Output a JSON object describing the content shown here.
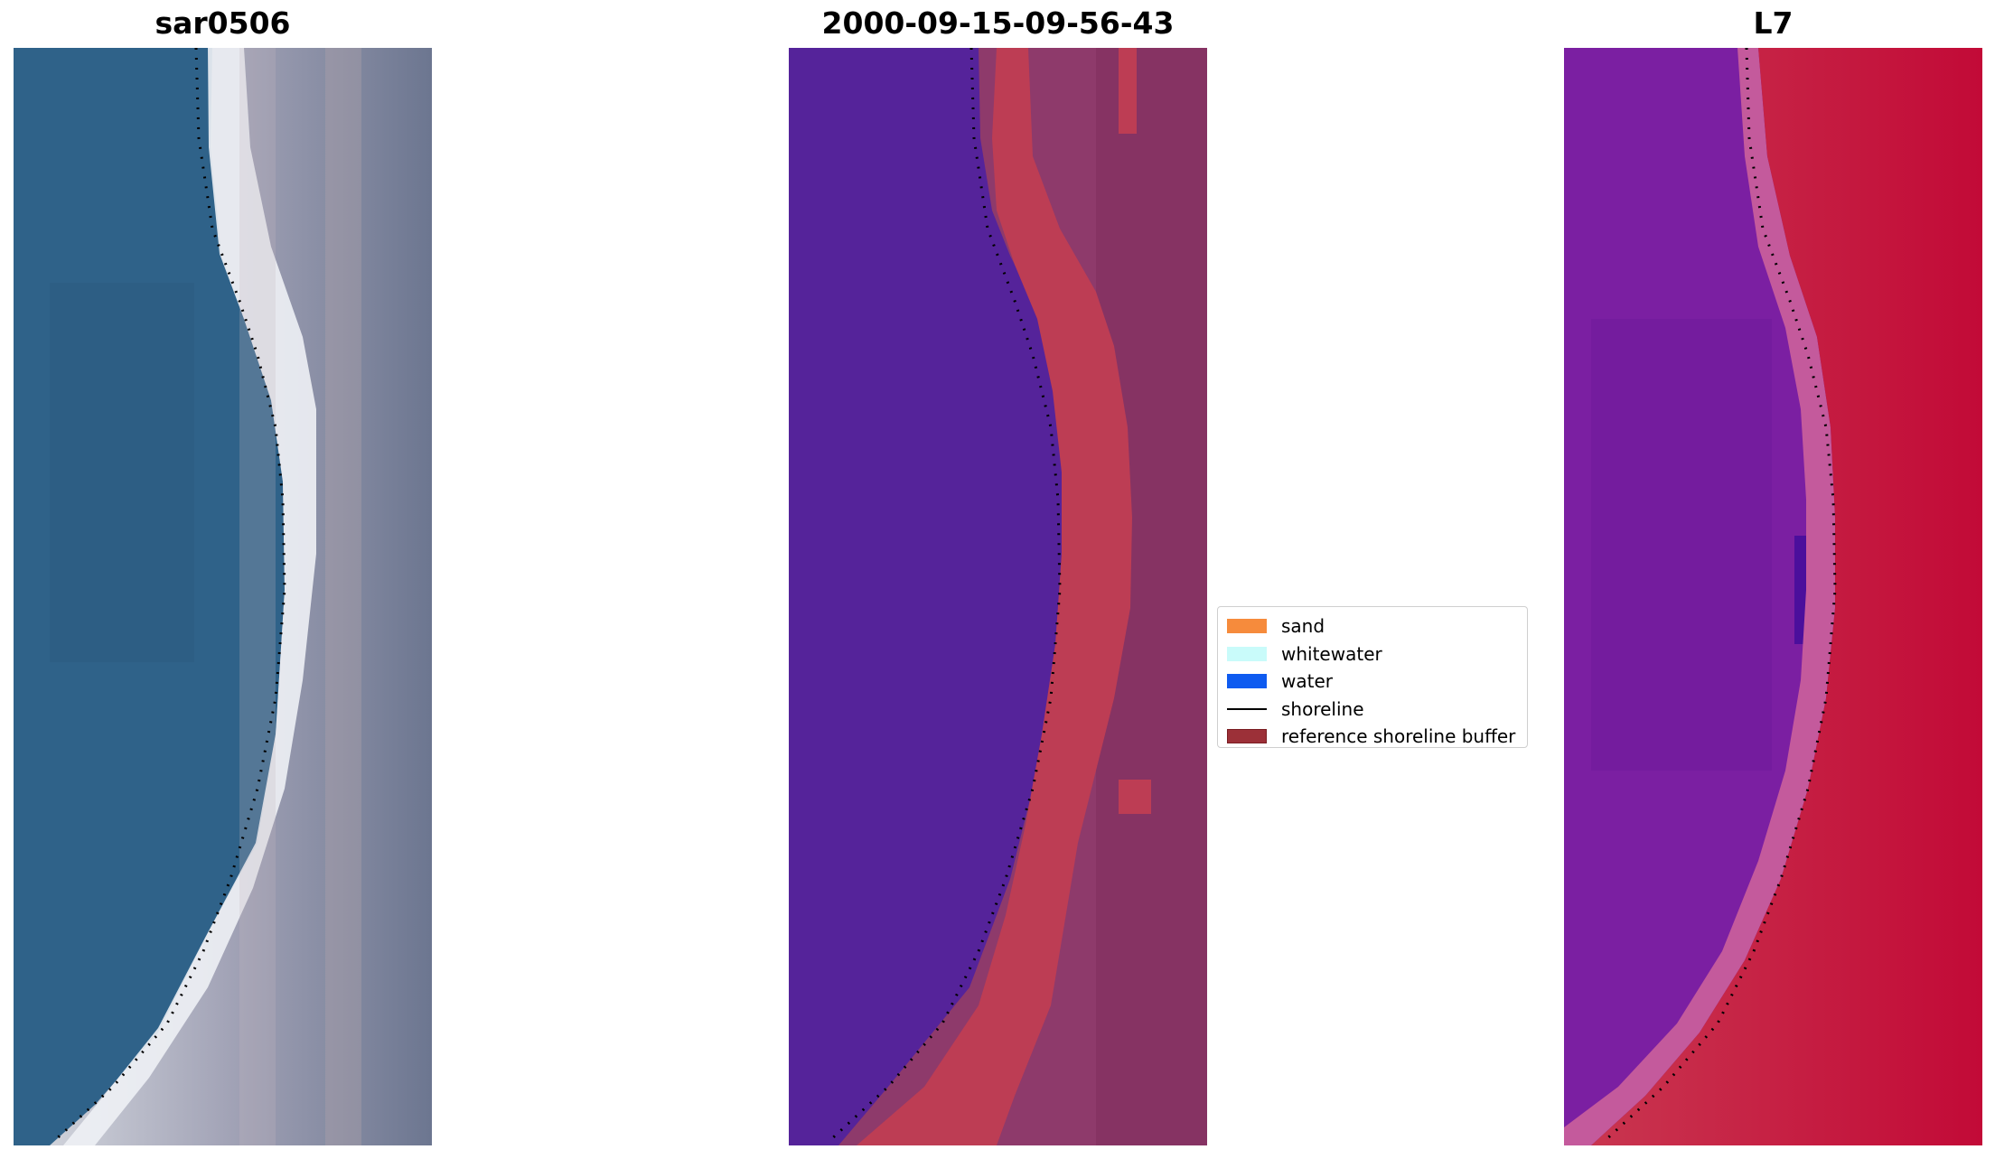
{
  "panels": {
    "rgb": {
      "title": "sar0506"
    },
    "classified": {
      "title": "2000-09-15-09-56-43"
    },
    "index": {
      "title": "L7"
    }
  },
  "legend": {
    "items": [
      {
        "label": "sand",
        "color": "#f68b3c",
        "kind": "patch"
      },
      {
        "label": "whitewater",
        "color": "#c9fbfa",
        "kind": "patch"
      },
      {
        "label": "water",
        "color": "#0e5bf0",
        "kind": "patch"
      },
      {
        "label": "shoreline",
        "color": "#000000",
        "kind": "line"
      },
      {
        "label": "reference shoreline buffer",
        "color": "#9c3038",
        "kind": "patch",
        "edge": "#7a1d22"
      }
    ]
  },
  "colors": {
    "rgb_water": "#2f6289",
    "rgb_surf": "#eef1f5",
    "rgb_land": "#a7a9bb",
    "class_water": "#55239a",
    "class_buffer": "#bd3d54",
    "class_land": "#8e3a6b",
    "ndwi_water": "#7b1fa2",
    "ndwi_edge": "#c45a9c",
    "ndwi_land": "#c60e3e"
  }
}
